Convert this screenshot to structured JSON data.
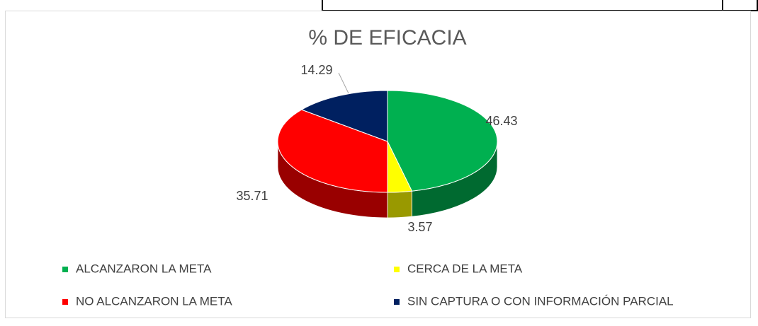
{
  "chart_data": {
    "type": "pie",
    "title": "% DE EFICACIA",
    "categories": [
      "ALCANZARON LA META",
      "CERCA DE LA META",
      "NO ALCANZARON LA META",
      "SIN CAPTURA O CON INFORMACIÓN PARCIAL"
    ],
    "values": [
      46.43,
      3.57,
      35.71,
      14.29
    ],
    "colors": [
      "#00b050",
      "#ffff00",
      "#ff0000",
      "#002060"
    ],
    "legend": "bottom"
  }
}
